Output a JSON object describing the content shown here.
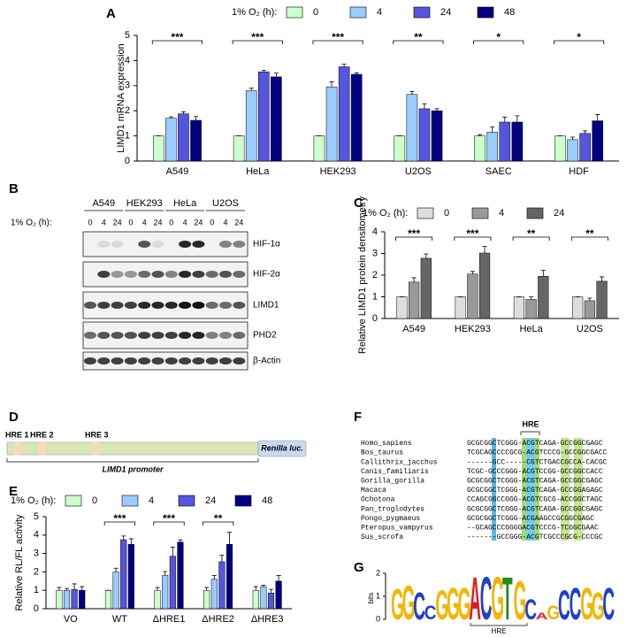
{
  "chart_data": [
    {
      "type": "bar",
      "panel": "A",
      "legend_title": "1% O₂ (h):",
      "ylabel": "LIMD1 mRNA expression",
      "categories": [
        "A549",
        "HeLa",
        "HEK293",
        "U2OS",
        "SAEC",
        "HDF"
      ],
      "series": [
        {
          "name": "0",
          "color": "#ccffcc",
          "values": [
            1,
            1,
            1,
            1,
            1,
            1
          ],
          "errors": [
            0,
            0,
            0,
            0,
            0.05,
            0
          ]
        },
        {
          "name": "4",
          "color": "#99ccff",
          "values": [
            1.7,
            2.8,
            2.95,
            2.65,
            1.15,
            0.85
          ],
          "errors": [
            0.06,
            0.1,
            0.2,
            0.12,
            0.2,
            0.1
          ]
        },
        {
          "name": "24",
          "color": "#5555dd",
          "values": [
            1.88,
            3.55,
            3.75,
            2.08,
            1.55,
            1.1
          ],
          "errors": [
            0.08,
            0.06,
            0.1,
            0.2,
            0.2,
            0.1
          ]
        },
        {
          "name": "48",
          "color": "#000080",
          "values": [
            1.62,
            3.35,
            3.45,
            2.0,
            1.55,
            1.6
          ],
          "errors": [
            0.15,
            0.15,
            0.06,
            0.08,
            0.25,
            0.25
          ]
        }
      ],
      "significance": [
        "***",
        "***",
        "***",
        "**",
        "*",
        "*"
      ],
      "ylim": [
        0,
        5
      ],
      "yticks": [
        0,
        1,
        2,
        3,
        4,
        5
      ]
    },
    {
      "type": "bar",
      "panel": "C",
      "legend_title": "1% O₂ (h):",
      "ylabel": "Relative LIMD1 protein densitometry",
      "categories": [
        "A549",
        "HEK293",
        "HeLa",
        "U2OS"
      ],
      "series": [
        {
          "name": "0",
          "color": "#dddddd",
          "values": [
            1,
            1,
            1,
            1
          ],
          "errors": [
            0,
            0,
            0,
            0
          ]
        },
        {
          "name": "4",
          "color": "#999999",
          "values": [
            1.68,
            2.05,
            0.88,
            0.82
          ],
          "errors": [
            0.2,
            0.12,
            0.12,
            0.12
          ]
        },
        {
          "name": "24",
          "color": "#666666",
          "values": [
            2.78,
            3.02,
            1.95,
            1.72
          ],
          "errors": [
            0.2,
            0.3,
            0.28,
            0.2
          ]
        }
      ],
      "significance": [
        "***",
        "***",
        "**",
        "**"
      ],
      "ylim": [
        0,
        4
      ],
      "yticks": [
        0,
        1,
        2,
        3,
        4
      ]
    },
    {
      "type": "bar",
      "panel": "E",
      "legend_title": "1% O₂ (h):",
      "ylabel": "Relative RL/FL activity",
      "categories": [
        "VO",
        "WT",
        "ΔHRE1",
        "ΔHRE2",
        "ΔHRE3"
      ],
      "series": [
        {
          "name": "0",
          "color": "#ccffcc",
          "values": [
            1,
            1,
            1,
            1,
            1
          ],
          "errors": [
            0.15,
            0,
            0.15,
            0.15,
            0.2
          ]
        },
        {
          "name": "4",
          "color": "#99ccff",
          "values": [
            1,
            2,
            1.82,
            1.6,
            1.2
          ],
          "errors": [
            0.1,
            0.2,
            0.2,
            0.2,
            0.08
          ]
        },
        {
          "name": "24",
          "color": "#5555dd",
          "values": [
            1.05,
            3.75,
            2.85,
            2.55,
            0.85
          ],
          "errors": [
            0.3,
            0.2,
            0.5,
            0.35,
            0.2
          ]
        },
        {
          "name": "48",
          "color": "#000080",
          "values": [
            1,
            3.5,
            3.62,
            3.5,
            1.5
          ],
          "errors": [
            0.2,
            0.3,
            0.12,
            0.65,
            0.3
          ]
        }
      ],
      "significance": [
        null,
        "***",
        "***",
        "**",
        null
      ],
      "ylim": [
        0,
        5
      ],
      "yticks": [
        0,
        1,
        2,
        3,
        4,
        5
      ]
    }
  ],
  "blot": {
    "panel": "B",
    "cell_lines": [
      "A549",
      "HEK293",
      "HeLa",
      "U2OS"
    ],
    "time_label": "1% O₂ (h):",
    "times": [
      "0",
      "4",
      "24"
    ],
    "proteins": [
      "HIF-1α",
      "HIF-2α",
      "LIMD1",
      "PHD2",
      "β-Actin"
    ]
  },
  "promoter": {
    "panel": "D",
    "hre_labels": [
      "HRE 1",
      "HRE 2",
      "HRE 3"
    ],
    "reporter": "Renilla luc.",
    "promoter": "LIMD1 promoter"
  },
  "alignment": {
    "panel": "F",
    "motif": "HRE",
    "rows": [
      [
        "Homo_sapiens",
        "GCGCGGCTCGGG-ACGTCAGA-GCCGGCGAGC"
      ],
      [
        "Bos_taurus",
        "TCGCAGCCCCGCG-ACGTCCCG-GCCGGCGACC"
      ],
      [
        "Callithrix_jacchus",
        "------GCC-----CGTCTGACCGCCA-CACGC"
      ],
      [
        "Canis_familiaris",
        "TCGC-GCCCGGG-ACGTCCGG-GCCGGCCACC"
      ],
      [
        "Gorilla_gorilla",
        "GCGCGGCTCGGG-ACGTCAGA-GCCGGCGAGC"
      ],
      [
        "Macaca",
        "GCGCGGCTCGGG-ACGTCAGA-GCCGGAGAGC"
      ],
      [
        "Ochotona",
        "CCAGCGGCCGGG-ACGTCGCG-ACCGGCTAGC"
      ],
      [
        "Pan_troglodytes",
        "GCGCGGCTCGGG-ACGTCAGA-GCCGGCGAGC"
      ],
      [
        "Pongo_pygmaeus",
        "GCGCGGCTCGGG-ACGAAGCCGCGGCGAGC"
      ],
      [
        "Pteropus_vampyrus",
        "--GCAGCCCGGGGACGTCCCG-TCGGCGAAC"
      ],
      [
        "Sus_scrofa",
        "-------GCCGGG-ACGTCGCCCGCG-CCCGC"
      ]
    ]
  },
  "logo": {
    "panel": "G",
    "ylabel": "bits",
    "motif": "HRE",
    "ylim": [
      0,
      2
    ],
    "yticks": [
      0,
      1,
      2
    ],
    "letters": [
      {
        "letter": "G",
        "bits": 1.35
      },
      {
        "letter": "G",
        "bits": 1.5
      },
      {
        "letter": "C",
        "bits": 1.2
      },
      {
        "letter": "C",
        "bits": 0.6
      },
      {
        "letter": "G",
        "bits": 1.3
      },
      {
        "letter": "G",
        "bits": 1.4
      },
      {
        "letter": "G",
        "bits": 1.4
      },
      {
        "letter": "A",
        "bits": 1.9
      },
      {
        "letter": "C",
        "bits": 1.9
      },
      {
        "letter": "G",
        "bits": 1.9
      },
      {
        "letter": "T",
        "bits": 1.9
      },
      {
        "letter": "G",
        "bits": 1.7
      },
      {
        "letter": "C",
        "bits": 0.9
      },
      {
        "letter": "A",
        "bits": 0.3
      },
      {
        "letter": "G",
        "bits": 0.6
      },
      {
        "letter": "C",
        "bits": 1.3
      },
      {
        "letter": "C",
        "bits": 1.4
      },
      {
        "letter": "G",
        "bits": 1.4
      },
      {
        "letter": "G",
        "bits": 1.2
      },
      {
        "letter": "C",
        "bits": 1.4
      }
    ]
  }
}
